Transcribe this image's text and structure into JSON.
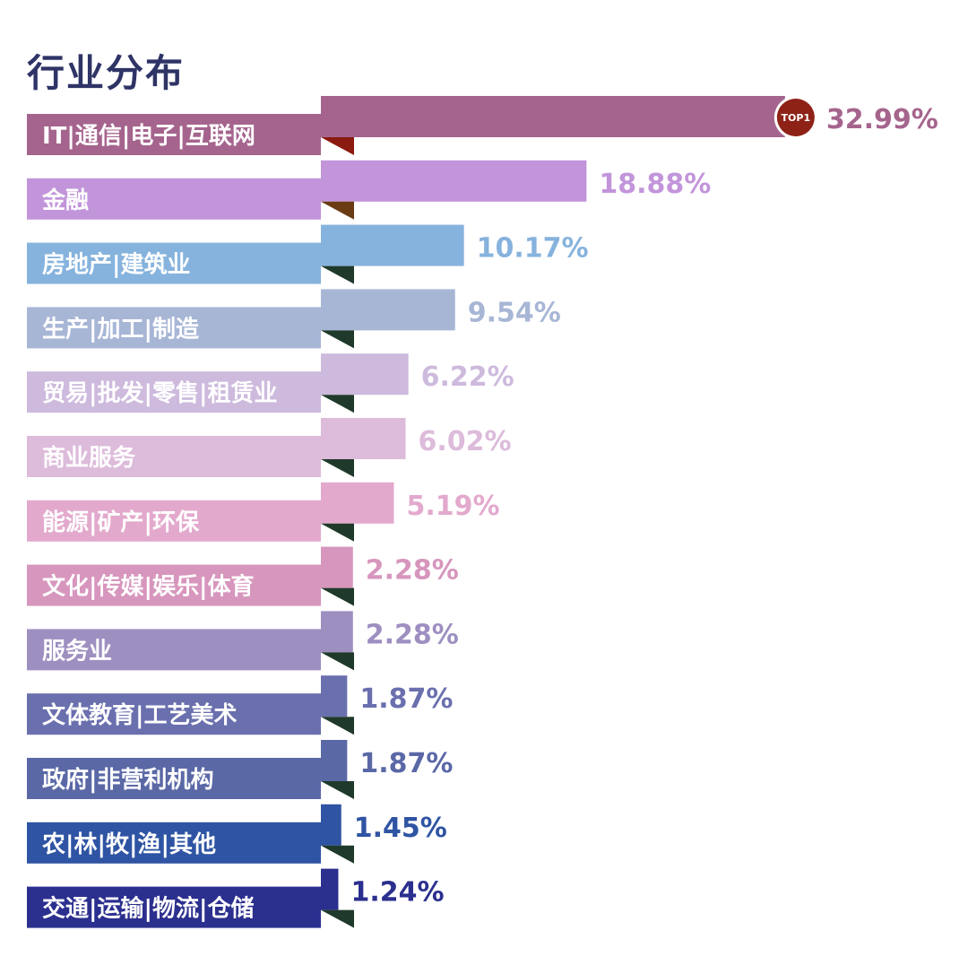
{
  "chart_data": {
    "type": "bar",
    "orientation": "horizontal",
    "title": "行业分布",
    "top_badge": "TOP1",
    "categories": [
      "IT|通信|电子|互联网",
      "金融",
      "房地产|建筑业",
      "生产|加工|制造",
      "贸易|批发|零售|租赁业",
      "商业服务",
      "能源|矿产|环保",
      "文化|传媒|娱乐|体育",
      "服务业",
      "文体教育|工艺美术",
      "政府|非营利机构",
      "农|林|牧|渔|其他",
      "交通|运输|物流|仓储"
    ],
    "values": [
      32.99,
      18.88,
      10.17,
      9.54,
      6.22,
      6.02,
      5.19,
      2.28,
      2.28,
      1.87,
      1.87,
      1.45,
      1.24
    ],
    "value_labels": [
      "32.99%",
      "18.88%",
      "10.17%",
      "9.54%",
      "6.22%",
      "6.02%",
      "5.19%",
      "2.28%",
      "2.28%",
      "1.87%",
      "1.87%",
      "1.45%",
      "1.24%"
    ],
    "colors": [
      "#a5648d",
      "#c295db",
      "#86b3dd",
      "#a8b6d6",
      "#cdbadd",
      "#ddbbdb",
      "#e3a9cd",
      "#d796bd",
      "#9e8fc1",
      "#6a6fae",
      "#5a68a6",
      "#2f54a3",
      "#2b2f8e"
    ],
    "label_colors": [
      "#a5648d",
      "#c295db",
      "#86b3dd",
      "#a8b6d6",
      "#cdbadd",
      "#ddbbdb",
      "#e3a9cd",
      "#d796bd",
      "#9e8fc1",
      "#6a6fae",
      "#5a68a6",
      "#2f54a3",
      "#2b2f8e"
    ],
    "fold_colors": [
      "#8b1a10",
      "#6b3c14",
      "#1f3a2a",
      "#1f3a2a",
      "#1f3a2a",
      "#1f3a2a",
      "#1f3a2a",
      "#1f3a2a",
      "#1f3a2a",
      "#1f3a2a",
      "#1f3a2a",
      "#1f3a2a",
      "#1f3a2a"
    ],
    "badge_color": "#8e2217",
    "xlim": [
      0,
      33
    ],
    "grid": false,
    "legend": "none"
  }
}
